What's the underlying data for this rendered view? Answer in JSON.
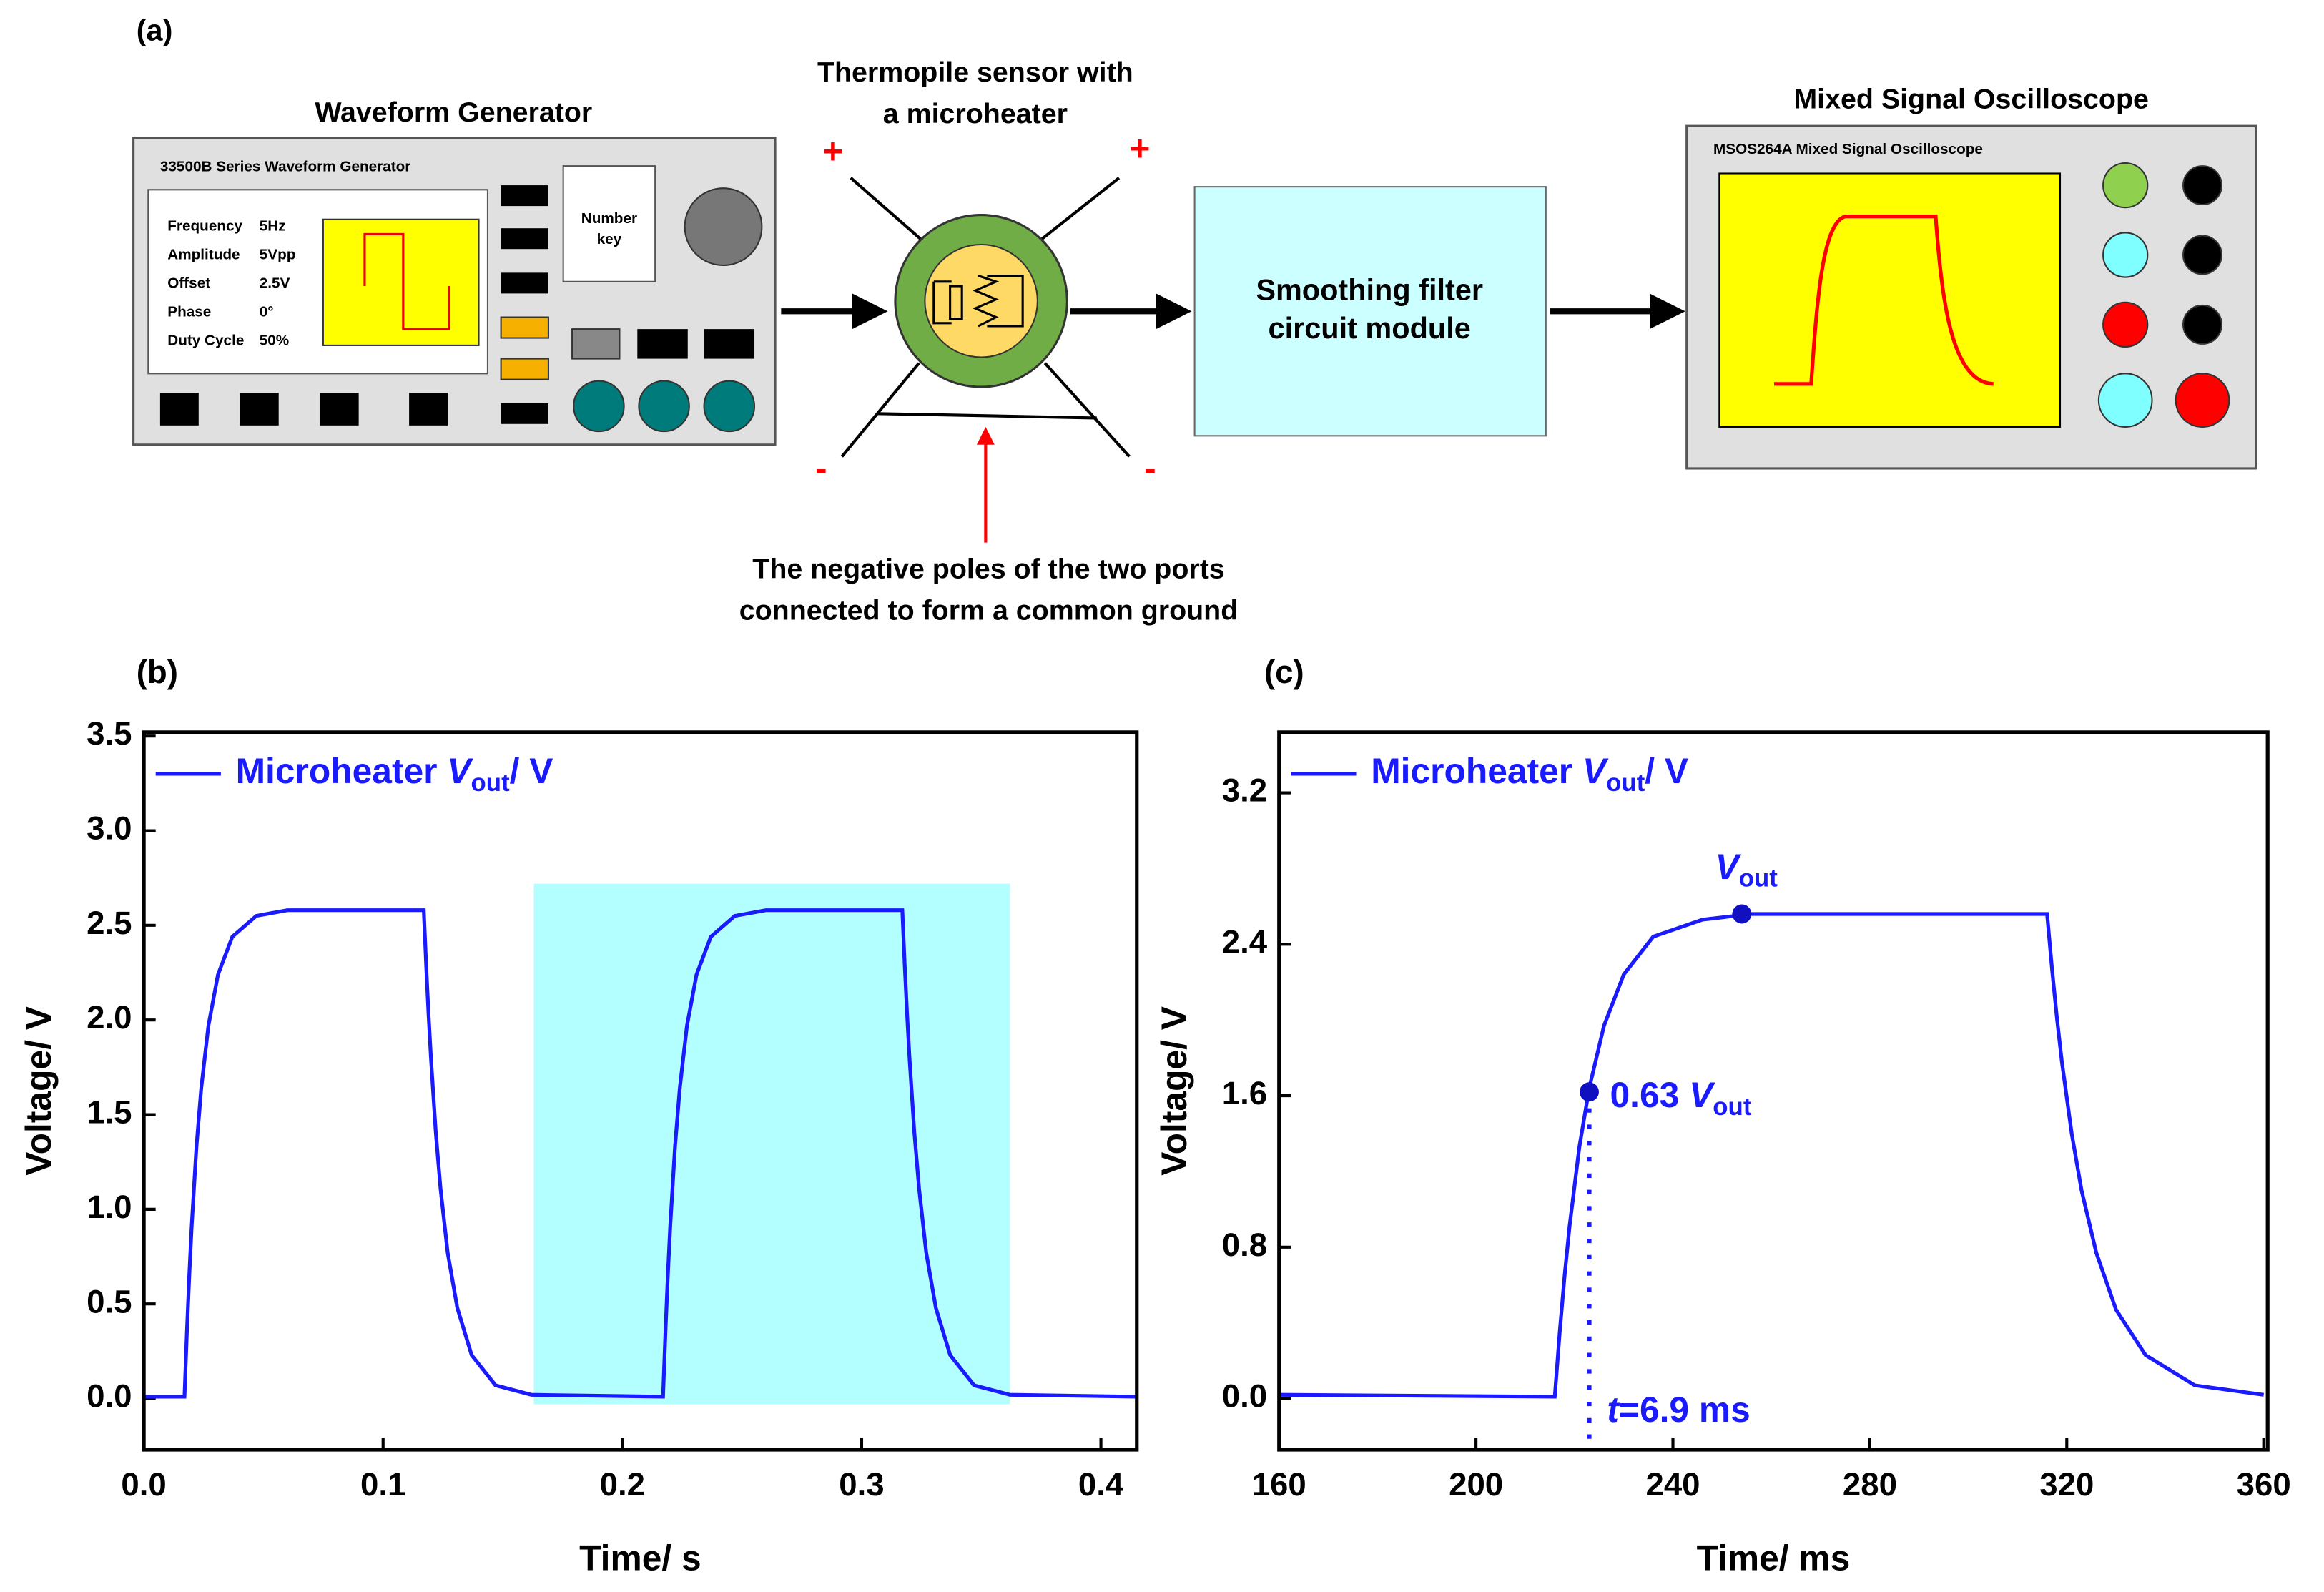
{
  "diagram": {
    "panel_label": "(a)",
    "generator": {
      "title": "Waveform Generator",
      "model": "33500B Series  Waveform Generator",
      "params": [
        [
          "Frequency",
          "5Hz"
        ],
        [
          "Amplitude",
          "5Vpp"
        ],
        [
          "Offset",
          "2.5V"
        ],
        [
          "Phase",
          "0°"
        ],
        [
          "Duty Cycle",
          "50%"
        ]
      ],
      "key": [
        "Number",
        "key"
      ]
    },
    "sensor": {
      "title": [
        "Thermopile sensor with",
        "a microheater"
      ],
      "plus": [
        "+",
        "+"
      ],
      "minus": [
        "-",
        "-"
      ]
    },
    "filter": {
      "text": [
        "Smoothing filter",
        "circuit module"
      ]
    },
    "scope": {
      "title": "Mixed Signal Oscilloscope",
      "model": "MSOS264A Mixed Signal Oscilloscope"
    },
    "note": [
      "The negative poles of the two ports",
      "connected to form a common ground"
    ]
  },
  "chart_data": [
    {
      "type": "line",
      "panel_label": "(b)",
      "xlabel": "Time/ s",
      "ylabel": "Voltage/ V",
      "legend": "upper left",
      "x": [
        0,
        0.017,
        0.018,
        0.019,
        0.02,
        0.022,
        0.024,
        0.027,
        0.031,
        0.037,
        0.047,
        0.06,
        0.117,
        0.118,
        0.119,
        0.12,
        0.122,
        0.124,
        0.127,
        0.131,
        0.137,
        0.147,
        0.162,
        0.217,
        0.218,
        0.219,
        0.22,
        0.222,
        0.224,
        0.227,
        0.231,
        0.237,
        0.247,
        0.26,
        0.317,
        0.318,
        0.319,
        0.32,
        0.322,
        0.324,
        0.327,
        0.331,
        0.337,
        0.347,
        0.362,
        0.415
      ],
      "series": [
        {
          "name": [
            "Microheater  ",
            "V",
            "out",
            "/ V"
          ],
          "color": "#1a1aff",
          "values": [
            0.01,
            0.01,
            0.35,
            0.65,
            0.91,
            1.33,
            1.64,
            1.97,
            2.24,
            2.44,
            2.55,
            2.58,
            2.58,
            2.29,
            2.03,
            1.8,
            1.41,
            1.11,
            0.77,
            0.48,
            0.23,
            0.07,
            0.02,
            0.01,
            0.35,
            0.65,
            0.91,
            1.33,
            1.64,
            1.97,
            2.24,
            2.44,
            2.55,
            2.58,
            2.58,
            2.29,
            2.03,
            1.8,
            1.41,
            1.11,
            0.77,
            0.48,
            0.23,
            0.07,
            0.02,
            0.01
          ]
        }
      ],
      "highlight": {
        "x": [
          0.163,
          0.362
        ],
        "y": [
          -0.03,
          2.72
        ],
        "color": "#b3ffff"
      },
      "xlim": [
        0,
        0.415
      ],
      "ylim": [
        -0.27,
        3.52
      ],
      "xticks": [
        {
          "value": 0,
          "label": "0.0"
        },
        0.1,
        0.2,
        0.3,
        0.4
      ],
      "yticks": [
        {
          "value": 0,
          "label": "0.0"
        },
        0.5,
        {
          "value": 1,
          "label": "1.0"
        },
        1.5,
        {
          "value": 2,
          "label": "2.0"
        },
        2.5,
        {
          "value": 3,
          "label": "3.0"
        },
        3.5
      ]
    },
    {
      "type": "line",
      "panel_label": "(c)",
      "xlabel": "Time/ ms",
      "ylabel": "Voltage/ V",
      "legend": "upper left",
      "x": [
        160,
        216,
        217,
        218,
        219,
        221,
        223,
        226,
        230,
        236,
        246,
        256,
        316,
        317,
        318,
        319,
        321,
        323,
        326,
        330,
        336,
        346,
        360
      ],
      "series": [
        {
          "name": [
            "Microheater  ",
            "V",
            "out",
            "/ V"
          ],
          "color": "#1a1aff",
          "values": [
            0.02,
            0.01,
            0.35,
            0.65,
            0.91,
            1.33,
            1.64,
            1.97,
            2.24,
            2.44,
            2.53,
            2.56,
            2.56,
            2.27,
            2.01,
            1.78,
            1.4,
            1.1,
            0.77,
            0.47,
            0.23,
            0.07,
            0.02
          ]
        }
      ],
      "annotations": [
        {
          "x": 223,
          "y": 1.62,
          "label": [
            "0.63 ",
            "V",
            "out"
          ]
        },
        {
          "x": 254,
          "y": 2.56,
          "label": [
            "V",
            "out"
          ]
        }
      ],
      "time_label": [
        "t",
        "=6.9 ms"
      ],
      "xlim": [
        160,
        360.8
      ],
      "ylim": [
        -0.27,
        3.52
      ],
      "xticks": [
        160,
        200,
        240,
        280,
        320,
        360
      ],
      "yticks": [
        {
          "value": 0,
          "label": "0.0"
        },
        0.8,
        1.6,
        2.4,
        3.2
      ]
    }
  ]
}
